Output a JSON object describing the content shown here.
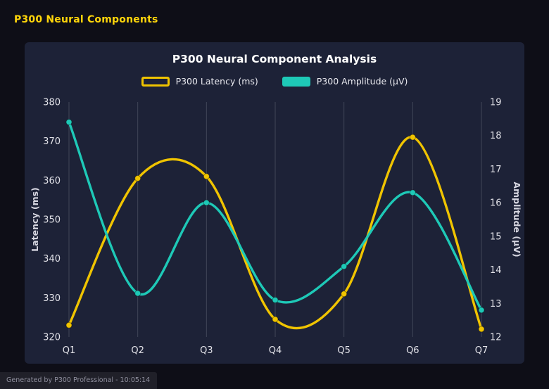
{
  "page": {
    "header_title": "P300 Neural Components",
    "footer_text": "Generated by P300 Professional - 10:05:14"
  },
  "colors": {
    "page_bg": "#0e0e17",
    "panel_bg": "#1d2237",
    "header_yellow": "#ffd60a",
    "latency_yellow": "#f0c400",
    "amplitude_teal": "#1ec9b7",
    "grid": "rgba(255,255,255,0.16)",
    "tick_text": "#e2e2e8"
  },
  "chart_data": {
    "type": "line",
    "title": "P300 Neural Component Analysis",
    "curve": "smooth-spline",
    "grid": "vertical-only",
    "legend_position": "top",
    "categories": [
      "Q1",
      "Q2",
      "Q3",
      "Q4",
      "Q5",
      "Q6",
      "Q7"
    ],
    "series": [
      {
        "name": "P300 Latency (ms)",
        "yAxis": "left",
        "color": "#f0c400",
        "legend_style": "outline",
        "values": [
          323,
          360.5,
          361,
          324.5,
          331,
          371,
          322
        ]
      },
      {
        "name": "P300 Amplitude (μV)",
        "yAxis": "right",
        "color": "#1ec9b7",
        "legend_style": "solid",
        "values": [
          18.4,
          13.3,
          16.0,
          13.1,
          14.1,
          16.3,
          12.8
        ]
      }
    ],
    "left_axis": {
      "label": "Latency (ms)",
      "min": 320,
      "max": 380,
      "ticks": [
        320,
        330,
        340,
        350,
        360,
        370,
        380
      ]
    },
    "right_axis": {
      "label": "Amplitude (μV)",
      "min": 12,
      "max": 19,
      "ticks": [
        12,
        13,
        14,
        15,
        16,
        17,
        18,
        19
      ]
    }
  }
}
